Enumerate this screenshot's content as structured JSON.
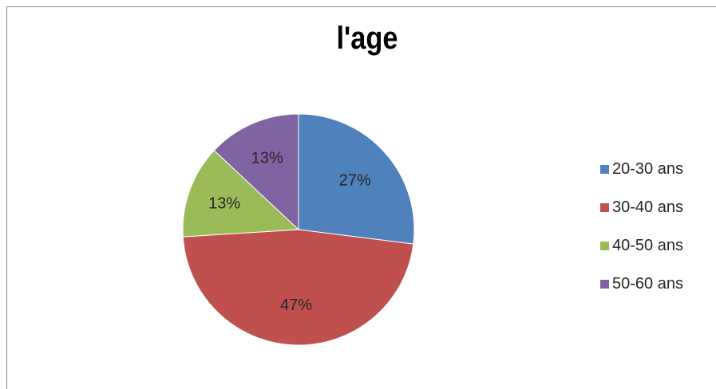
{
  "chart_data": {
    "type": "pie",
    "title": "l'age",
    "categories": [
      "20-30 ans",
      "30-40 ans",
      "40-50 ans",
      "50-60 ans"
    ],
    "values": [
      27,
      47,
      13,
      13
    ],
    "labels": [
      "27%",
      "47%",
      "13%",
      "13%"
    ],
    "colors": [
      "#4f81bd",
      "#c0504d",
      "#9bbb59",
      "#8064a2"
    ],
    "legend": "right",
    "start_angle_deg": 0,
    "direction": "clockwise"
  }
}
